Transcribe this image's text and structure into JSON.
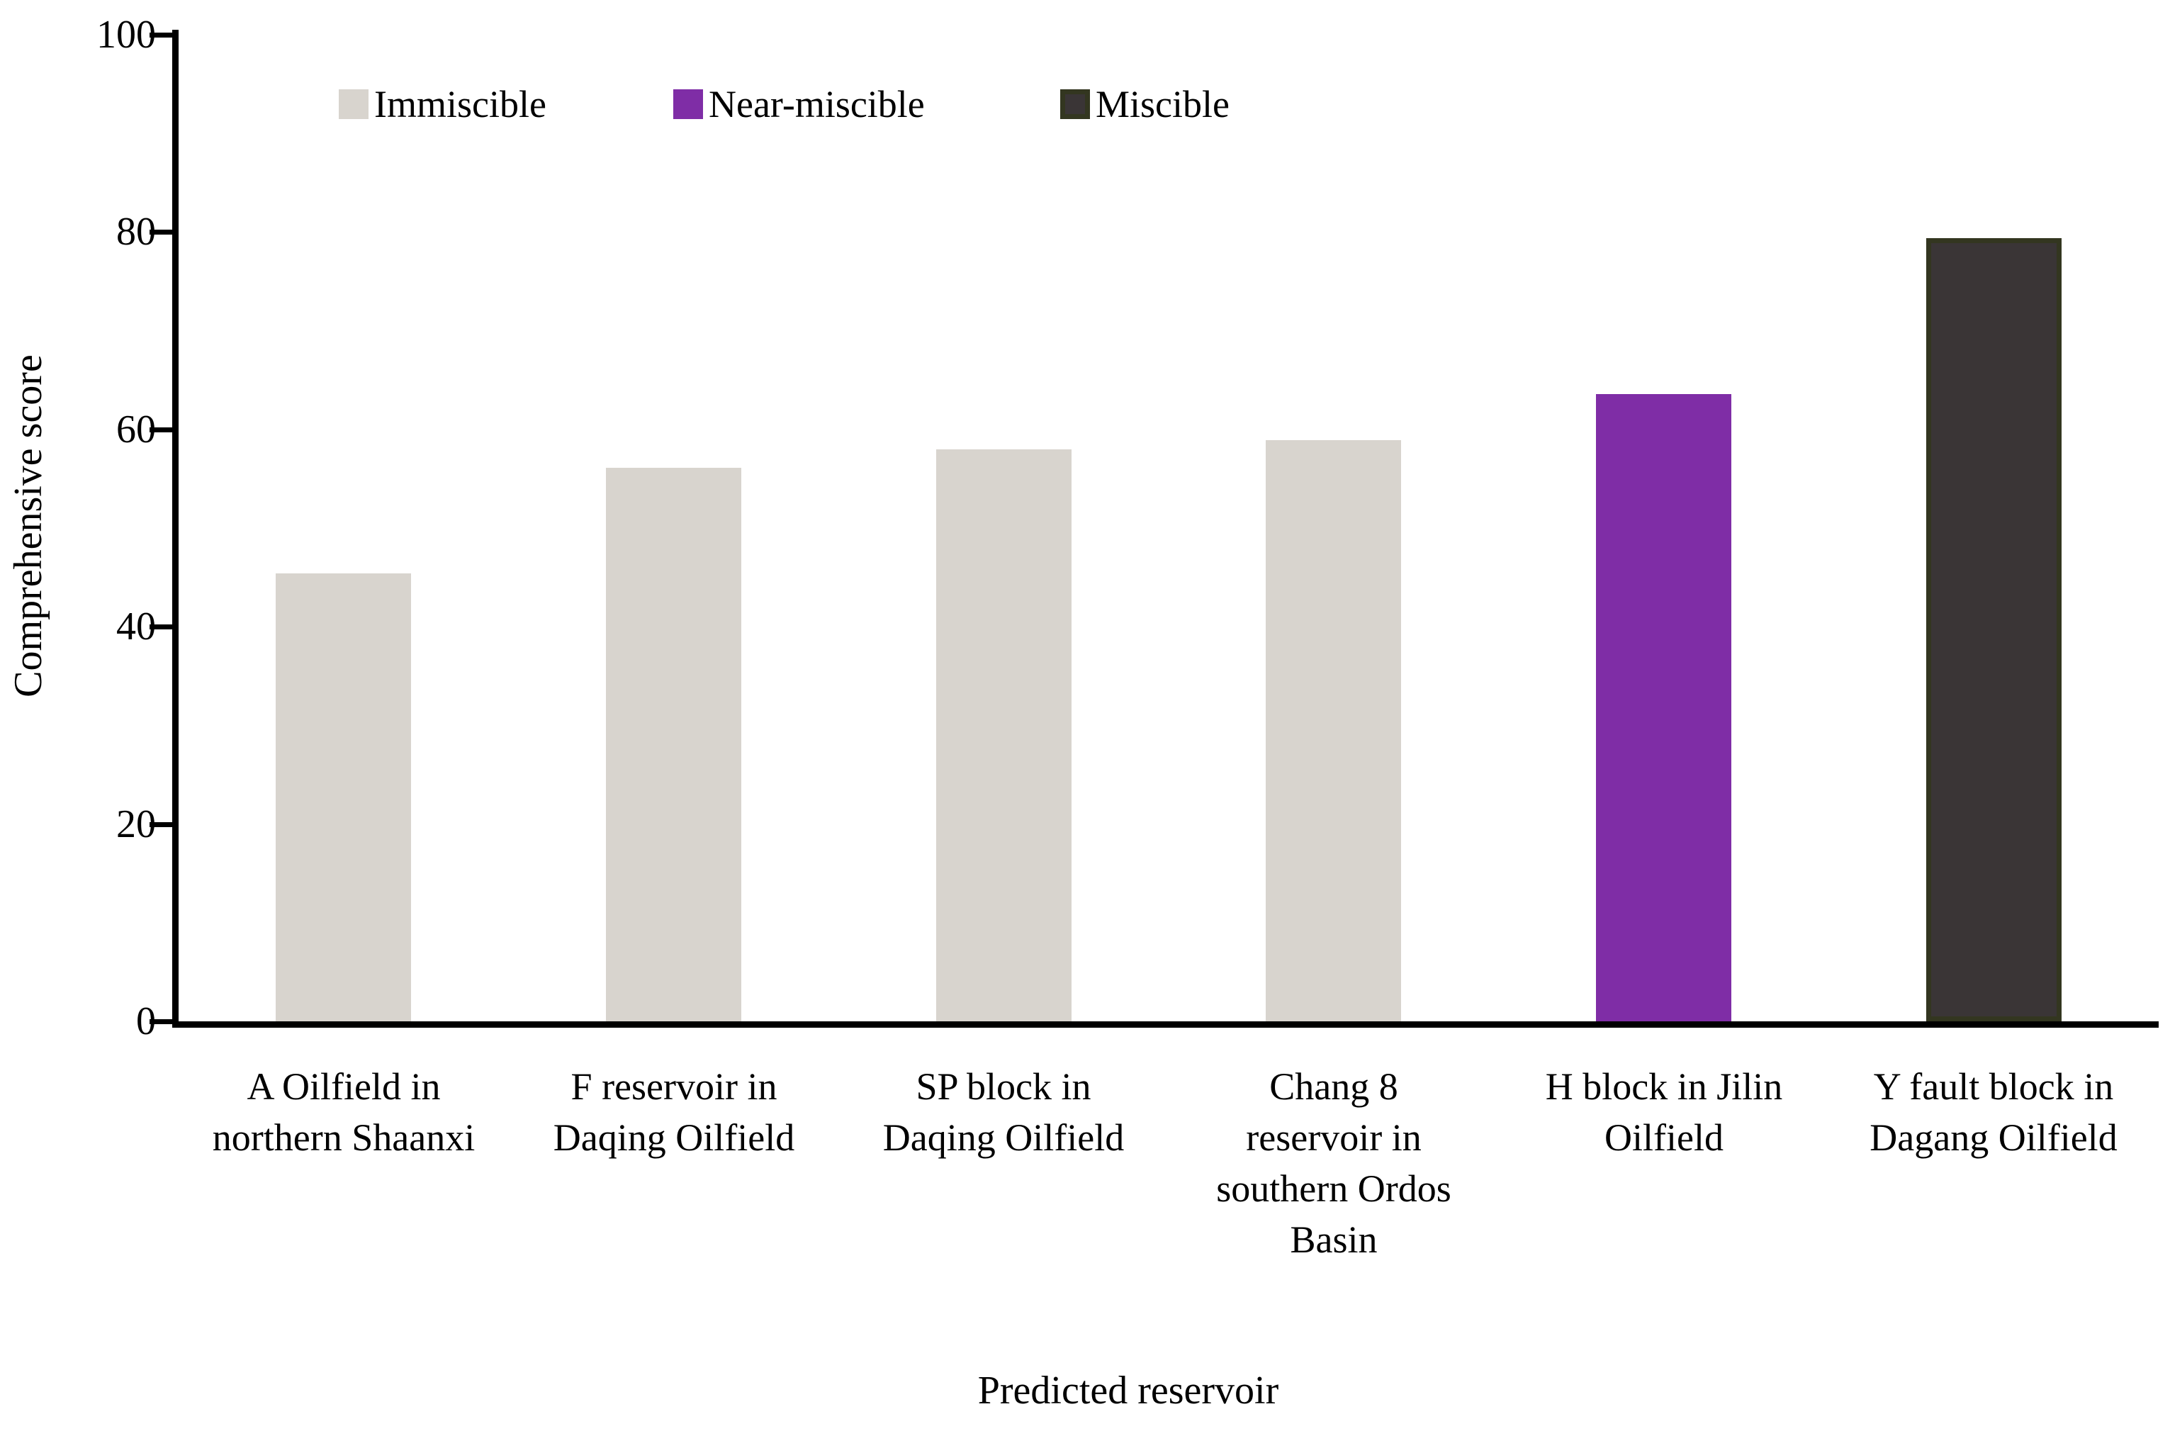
{
  "figure": {
    "background": "#ffffff",
    "axis_color": "#000000",
    "text_color": "#000000"
  },
  "chart_data": {
    "type": "bar",
    "title": "",
    "xlabel": "Predicted reservoir",
    "ylabel": "Comprehensive score",
    "ylim": [
      0,
      100
    ],
    "yticks": [
      0,
      20,
      40,
      60,
      80,
      100
    ],
    "grid": false,
    "legend_position": "top",
    "legend": [
      {
        "label": "Immiscible",
        "color": "#d8d4ce",
        "border": "#d8d4ce"
      },
      {
        "label": "Near-miscible",
        "color": "#7f2da6",
        "border": "#7f2da6"
      },
      {
        "label": "Miscible",
        "color": "#3a3536",
        "border": "#333620"
      }
    ],
    "categories": [
      {
        "label": "A Oilfield in northern Shaanxi",
        "lines": [
          "A Oilfield in",
          "northern Shaanxi"
        ],
        "group": "Immiscible",
        "value": 45.4
      },
      {
        "label": "F reservoir in Daqing Oilfield",
        "lines": [
          "F reservoir in",
          "Daqing Oilfield"
        ],
        "group": "Immiscible",
        "value": 56.1
      },
      {
        "label": "SP block in Daqing Oilfield",
        "lines": [
          "SP block in",
          "Daqing Oilfield"
        ],
        "group": "Immiscible",
        "value": 58.0
      },
      {
        "label": "Chang 8 reservoir in southern Ordos Basin",
        "lines": [
          "Chang 8",
          "reservoir in",
          "southern Ordos",
          "Basin"
        ],
        "group": "Immiscible",
        "value": 58.9
      },
      {
        "label": "H block in Jilin Oilfield",
        "lines": [
          "H block in Jilin",
          "Oilfield"
        ],
        "group": "Near-miscible",
        "value": 63.6
      },
      {
        "label": "Y fault block in Dagang Oilfield",
        "lines": [
          "Y fault block in",
          "Dagang Oilfield"
        ],
        "group": "Miscible",
        "value": 79.4
      }
    ]
  }
}
